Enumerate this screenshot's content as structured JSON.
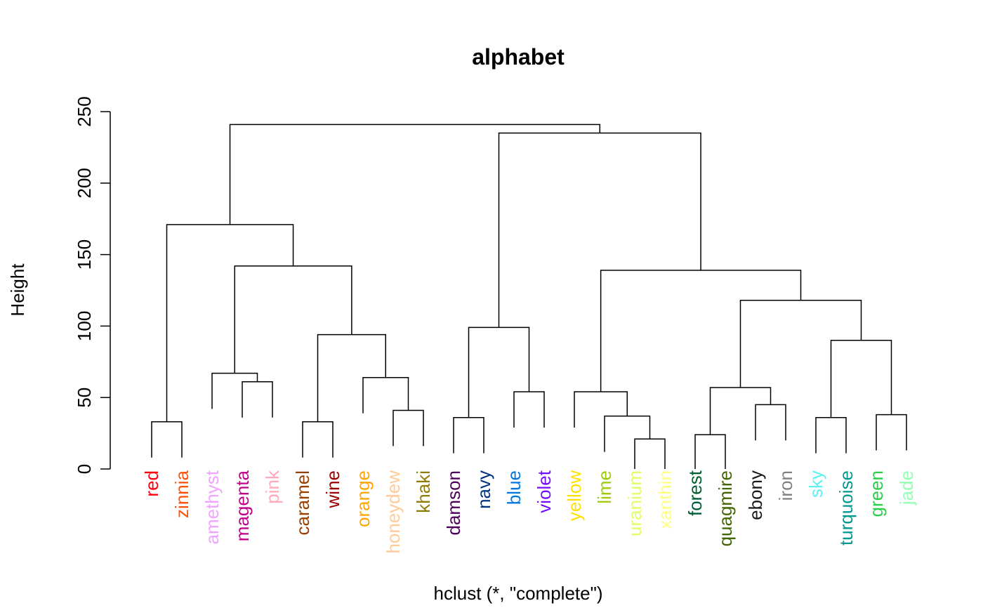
{
  "chart_data": {
    "type": "dendrogram",
    "title": "alphabet",
    "xlabel": "hclust (*, \"complete\")",
    "ylabel": "Height",
    "ylim": [
      0,
      250
    ],
    "yticks": [
      0,
      50,
      100,
      150,
      200,
      250
    ],
    "leaves": [
      {
        "label": "red",
        "color": "#ff0010"
      },
      {
        "label": "zinnia",
        "color": "#ff5005"
      },
      {
        "label": "amethyst",
        "color": "#f0a3ff"
      },
      {
        "label": "magenta",
        "color": "#c20088"
      },
      {
        "label": "pink",
        "color": "#ffa8bb"
      },
      {
        "label": "caramel",
        "color": "#993f00"
      },
      {
        "label": "wine",
        "color": "#990000"
      },
      {
        "label": "orange",
        "color": "#ffa405"
      },
      {
        "label": "honeydew",
        "color": "#ffcc99"
      },
      {
        "label": "khaki",
        "color": "#8f7c00"
      },
      {
        "label": "damson",
        "color": "#4c005c"
      },
      {
        "label": "navy",
        "color": "#003380"
      },
      {
        "label": "blue",
        "color": "#0075dc"
      },
      {
        "label": "violet",
        "color": "#740aff"
      },
      {
        "label": "yellow",
        "color": "#ffe100"
      },
      {
        "label": "lime",
        "color": "#9dcc00"
      },
      {
        "label": "uranium",
        "color": "#e0ff66"
      },
      {
        "label": "xanthin",
        "color": "#ffff80"
      },
      {
        "label": "forest",
        "color": "#005c31"
      },
      {
        "label": "quagmire",
        "color": "#426600"
      },
      {
        "label": "ebony",
        "color": "#191919"
      },
      {
        "label": "iron",
        "color": "#808080"
      },
      {
        "label": "sky",
        "color": "#5ef1f2"
      },
      {
        "label": "turquoise",
        "color": "#00998f"
      },
      {
        "label": "green",
        "color": "#2bce48"
      },
      {
        "label": "jade",
        "color": "#94ffb5"
      }
    ],
    "merges": [
      {
        "a": "red",
        "b": "zinnia",
        "height": 33,
        "id": "n1"
      },
      {
        "a": "magenta",
        "b": "pink",
        "height": 61,
        "id": "n2"
      },
      {
        "a": "amethyst",
        "b": "n2",
        "height": 67,
        "id": "n3"
      },
      {
        "a": "caramel",
        "b": "wine",
        "height": 33,
        "id": "n4"
      },
      {
        "a": "honeydew",
        "b": "khaki",
        "height": 41,
        "id": "n5"
      },
      {
        "a": "orange",
        "b": "n5",
        "height": 64,
        "id": "n6"
      },
      {
        "a": "n4",
        "b": "n6",
        "height": 94,
        "id": "n7"
      },
      {
        "a": "n3",
        "b": "n7",
        "height": 142,
        "id": "n8"
      },
      {
        "a": "n1",
        "b": "n8",
        "height": 171,
        "id": "n9"
      },
      {
        "a": "damson",
        "b": "navy",
        "height": 36,
        "id": "n10"
      },
      {
        "a": "blue",
        "b": "violet",
        "height": 54,
        "id": "n11"
      },
      {
        "a": "n10",
        "b": "n11",
        "height": 99,
        "id": "n12"
      },
      {
        "a": "uranium",
        "b": "xanthin",
        "height": 21,
        "id": "n13"
      },
      {
        "a": "lime",
        "b": "n13",
        "height": 37,
        "id": "n14"
      },
      {
        "a": "yellow",
        "b": "n14",
        "height": 54,
        "id": "n15"
      },
      {
        "a": "forest",
        "b": "quagmire",
        "height": 24,
        "id": "n16"
      },
      {
        "a": "ebony",
        "b": "iron",
        "height": 45,
        "id": "n17"
      },
      {
        "a": "n16",
        "b": "n17",
        "height": 57,
        "id": "n18"
      },
      {
        "a": "sky",
        "b": "turquoise",
        "height": 36,
        "id": "n19"
      },
      {
        "a": "green",
        "b": "jade",
        "height": 38,
        "id": "n20"
      },
      {
        "a": "n19",
        "b": "n20",
        "height": 90,
        "id": "n21"
      },
      {
        "a": "n18",
        "b": "n21",
        "height": 118,
        "id": "n22"
      },
      {
        "a": "n15",
        "b": "n22",
        "height": 139,
        "id": "n23"
      },
      {
        "a": "n12",
        "b": "n23",
        "height": 235,
        "id": "n24"
      },
      {
        "a": "n9",
        "b": "n24",
        "height": 241,
        "id": "n25"
      }
    ]
  }
}
